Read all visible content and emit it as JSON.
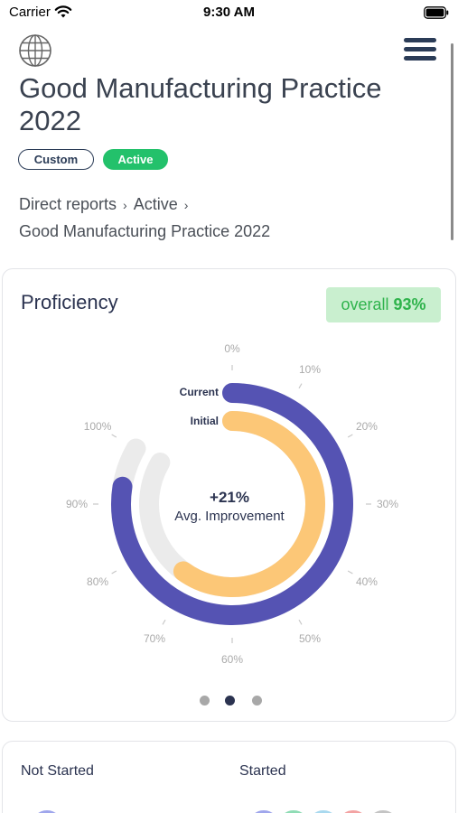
{
  "status_bar": {
    "carrier": "Carrier",
    "time": "9:30 AM",
    "wifi_icon": "wifi-icon",
    "battery_icon": "battery-icon"
  },
  "header": {
    "globe_icon": "globe-icon",
    "menu_icon": "hamburger-menu-icon",
    "title": "Good Manufacturing Practice 2022",
    "badges": [
      "Custom",
      "Active"
    ]
  },
  "breadcrumb": {
    "items": [
      "Direct reports",
      "Active",
      "Good Manufacturing Practice 2022"
    ],
    "separator": "›"
  },
  "proficiency": {
    "title": "Proficiency",
    "overall_label": "overall",
    "overall_value": "93%",
    "current_label": "Current",
    "initial_label": "Initial",
    "center_value": "+21%",
    "center_caption": "Avg. Improvement",
    "ticks": [
      "0%",
      "10%",
      "20%",
      "30%",
      "40%",
      "50%",
      "60%",
      "70%",
      "80%",
      "90%",
      "100%"
    ],
    "pager": {
      "count": 3,
      "active_index": 1
    }
  },
  "chart_data": {
    "type": "radial-bar",
    "categories": [
      "Current",
      "Initial"
    ],
    "values": [
      93,
      72
    ],
    "ylim": [
      0,
      100
    ],
    "ticks": [
      "0%",
      "10%",
      "20%",
      "30%",
      "40%",
      "50%",
      "60%",
      "70%",
      "80%",
      "90%",
      "100%"
    ],
    "center_text": "+21%",
    "center_caption": "Avg. Improvement"
  },
  "status_summary": {
    "not_started_label": "Not Started",
    "started_label": "Started"
  },
  "colors": {
    "current_ring": "#5553b3",
    "initial_ring": "#fcc777",
    "track": "#ebebeb",
    "active_badge": "#23c16b",
    "overall_bg": "#c9efcf",
    "overall_text": "#2fb34c",
    "dot_active": "#2b3350",
    "dot_inactive": "#a8a8a8"
  }
}
